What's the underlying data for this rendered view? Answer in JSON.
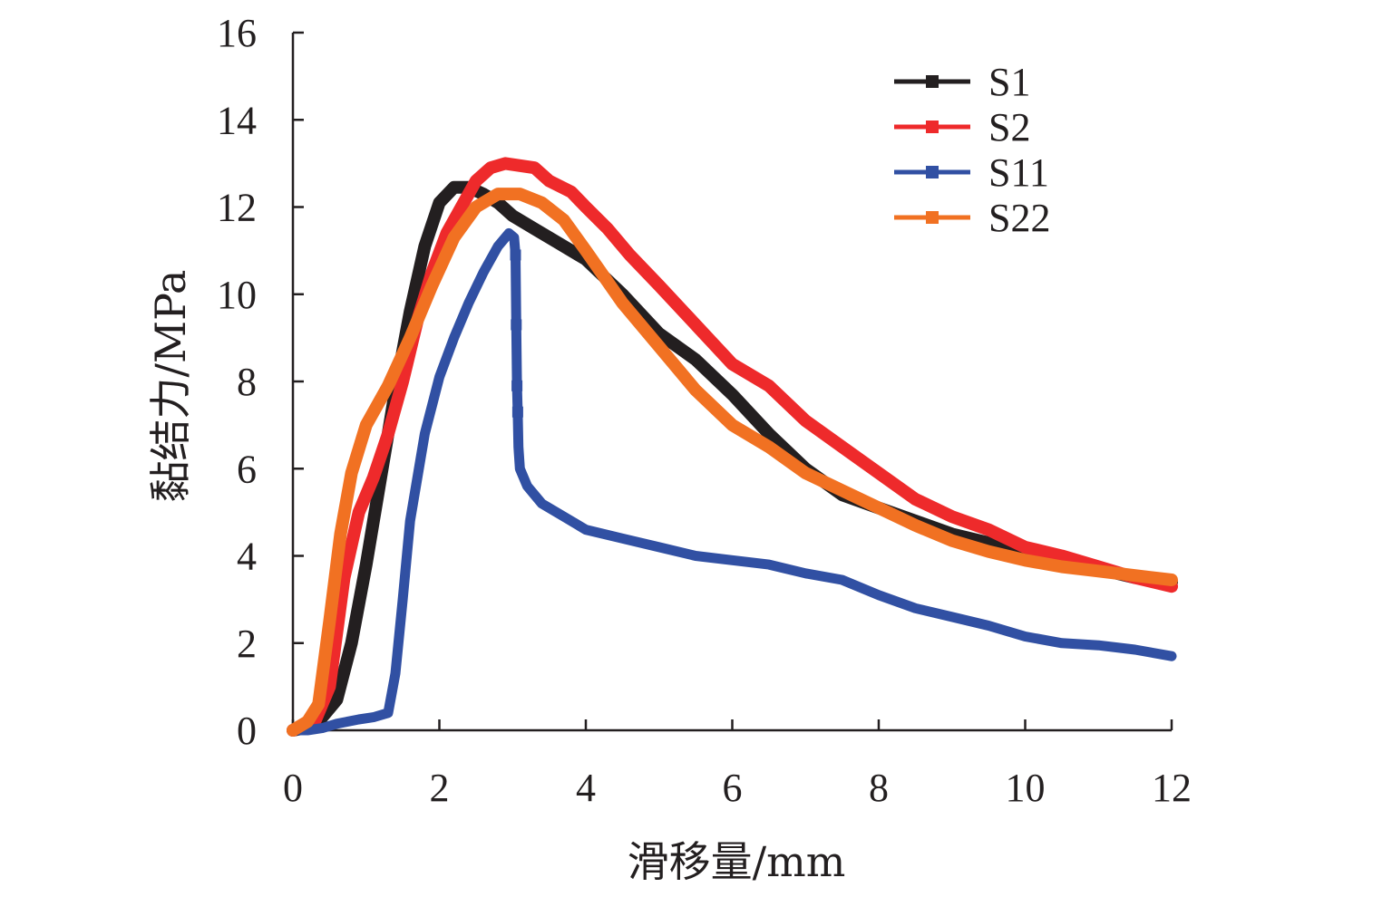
{
  "chart_data": {
    "type": "line",
    "xlabel": "滑移量/mm",
    "ylabel": "黏结力/MPa",
    "xlim": [
      0,
      12
    ],
    "ylim": [
      0,
      16
    ],
    "xticks": [
      "0",
      "2",
      "4",
      "6",
      "8",
      "10",
      "12"
    ],
    "yticks": [
      "0",
      "2",
      "4",
      "6",
      "8",
      "10",
      "12",
      "14",
      "16"
    ],
    "grid": false,
    "legend_position": "top-right",
    "series": [
      {
        "name": "S1",
        "color": "#231f20",
        "points": [
          [
            0,
            0
          ],
          [
            0.3,
            0.1
          ],
          [
            0.6,
            0.7
          ],
          [
            0.8,
            2.0
          ],
          [
            1.0,
            3.8
          ],
          [
            1.2,
            5.8
          ],
          [
            1.4,
            7.8
          ],
          [
            1.6,
            9.6
          ],
          [
            1.8,
            11.1
          ],
          [
            2.0,
            12.1
          ],
          [
            2.2,
            12.45
          ],
          [
            2.4,
            12.45
          ],
          [
            2.6,
            12.3
          ],
          [
            2.8,
            12.1
          ],
          [
            3.0,
            11.8
          ],
          [
            3.3,
            11.5
          ],
          [
            3.6,
            11.2
          ],
          [
            4.0,
            10.8
          ],
          [
            4.5,
            10.0
          ],
          [
            5.0,
            9.1
          ],
          [
            5.5,
            8.5
          ],
          [
            6.0,
            7.7
          ],
          [
            6.5,
            6.8
          ],
          [
            7.0,
            6.0
          ],
          [
            7.5,
            5.4
          ],
          [
            8.0,
            5.1
          ],
          [
            8.5,
            4.8
          ],
          [
            9.0,
            4.5
          ],
          [
            9.5,
            4.3
          ],
          [
            10.0,
            4.1
          ],
          [
            10.5,
            3.9
          ],
          [
            11.0,
            3.7
          ],
          [
            11.5,
            3.5
          ],
          [
            12.0,
            3.4
          ]
        ]
      },
      {
        "name": "S2",
        "color": "#ee2a2b",
        "points": [
          [
            0,
            0
          ],
          [
            0.3,
            0.2
          ],
          [
            0.5,
            1.0
          ],
          [
            0.7,
            3.5
          ],
          [
            0.9,
            5.0
          ],
          [
            1.1,
            5.8
          ],
          [
            1.3,
            6.8
          ],
          [
            1.5,
            8.0
          ],
          [
            1.7,
            9.4
          ],
          [
            1.9,
            10.5
          ],
          [
            2.1,
            11.4
          ],
          [
            2.3,
            12.0
          ],
          [
            2.5,
            12.6
          ],
          [
            2.7,
            12.9
          ],
          [
            2.9,
            13.0
          ],
          [
            3.1,
            12.95
          ],
          [
            3.3,
            12.9
          ],
          [
            3.5,
            12.6
          ],
          [
            3.8,
            12.35
          ],
          [
            4.0,
            12.0
          ],
          [
            4.3,
            11.5
          ],
          [
            4.6,
            10.9
          ],
          [
            5.0,
            10.2
          ],
          [
            5.5,
            9.3
          ],
          [
            6.0,
            8.4
          ],
          [
            6.5,
            7.9
          ],
          [
            7.0,
            7.1
          ],
          [
            7.5,
            6.5
          ],
          [
            8.0,
            5.9
          ],
          [
            8.5,
            5.3
          ],
          [
            9.0,
            4.9
          ],
          [
            9.5,
            4.6
          ],
          [
            10.0,
            4.2
          ],
          [
            10.5,
            4.0
          ],
          [
            11.0,
            3.75
          ],
          [
            11.5,
            3.5
          ],
          [
            12.0,
            3.3
          ]
        ]
      },
      {
        "name": "S11",
        "color": "#3150a3",
        "points": [
          [
            0,
            0
          ],
          [
            0.2,
            0
          ],
          [
            0.4,
            0.05
          ],
          [
            0.6,
            0.15
          ],
          [
            0.9,
            0.25
          ],
          [
            1.1,
            0.3
          ],
          [
            1.3,
            0.4
          ],
          [
            1.4,
            1.3
          ],
          [
            1.5,
            3.0
          ],
          [
            1.6,
            4.8
          ],
          [
            1.8,
            6.8
          ],
          [
            2.0,
            8.1
          ],
          [
            2.2,
            9.0
          ],
          [
            2.4,
            9.8
          ],
          [
            2.6,
            10.5
          ],
          [
            2.8,
            11.1
          ],
          [
            2.95,
            11.4
          ],
          [
            3.02,
            11.3
          ],
          [
            3.04,
            10.9
          ],
          [
            3.05,
            9.3
          ],
          [
            3.06,
            7.9
          ],
          [
            3.07,
            7.3
          ],
          [
            3.08,
            6.5
          ],
          [
            3.1,
            6.0
          ],
          [
            3.2,
            5.6
          ],
          [
            3.4,
            5.2
          ],
          [
            3.7,
            4.9
          ],
          [
            4.0,
            4.6
          ],
          [
            4.5,
            4.4
          ],
          [
            5.0,
            4.2
          ],
          [
            5.5,
            4.0
          ],
          [
            6.0,
            3.9
          ],
          [
            6.5,
            3.8
          ],
          [
            7.0,
            3.6
          ],
          [
            7.5,
            3.45
          ],
          [
            8.0,
            3.1
          ],
          [
            8.5,
            2.8
          ],
          [
            9.0,
            2.6
          ],
          [
            9.5,
            2.4
          ],
          [
            10.0,
            2.15
          ],
          [
            10.5,
            2.0
          ],
          [
            11.0,
            1.95
          ],
          [
            11.5,
            1.85
          ],
          [
            12.0,
            1.7
          ]
        ]
      },
      {
        "name": "S22",
        "color": "#f17122",
        "points": [
          [
            0,
            0
          ],
          [
            0.2,
            0.2
          ],
          [
            0.35,
            0.6
          ],
          [
            0.5,
            2.5
          ],
          [
            0.65,
            4.5
          ],
          [
            0.8,
            5.9
          ],
          [
            1.0,
            7.0
          ],
          [
            1.3,
            7.9
          ],
          [
            1.6,
            9.0
          ],
          [
            1.9,
            10.2
          ],
          [
            2.2,
            11.3
          ],
          [
            2.5,
            12.0
          ],
          [
            2.8,
            12.3
          ],
          [
            3.1,
            12.3
          ],
          [
            3.4,
            12.1
          ],
          [
            3.7,
            11.7
          ],
          [
            4.0,
            11.0
          ],
          [
            4.5,
            9.8
          ],
          [
            5.0,
            8.8
          ],
          [
            5.5,
            7.8
          ],
          [
            6.0,
            7.0
          ],
          [
            6.5,
            6.5
          ],
          [
            7.0,
            5.9
          ],
          [
            7.5,
            5.5
          ],
          [
            8.0,
            5.1
          ],
          [
            8.5,
            4.7
          ],
          [
            9.0,
            4.35
          ],
          [
            9.5,
            4.1
          ],
          [
            10.0,
            3.9
          ],
          [
            10.5,
            3.75
          ],
          [
            11.0,
            3.65
          ],
          [
            11.5,
            3.55
          ],
          [
            12.0,
            3.45
          ]
        ]
      }
    ]
  }
}
